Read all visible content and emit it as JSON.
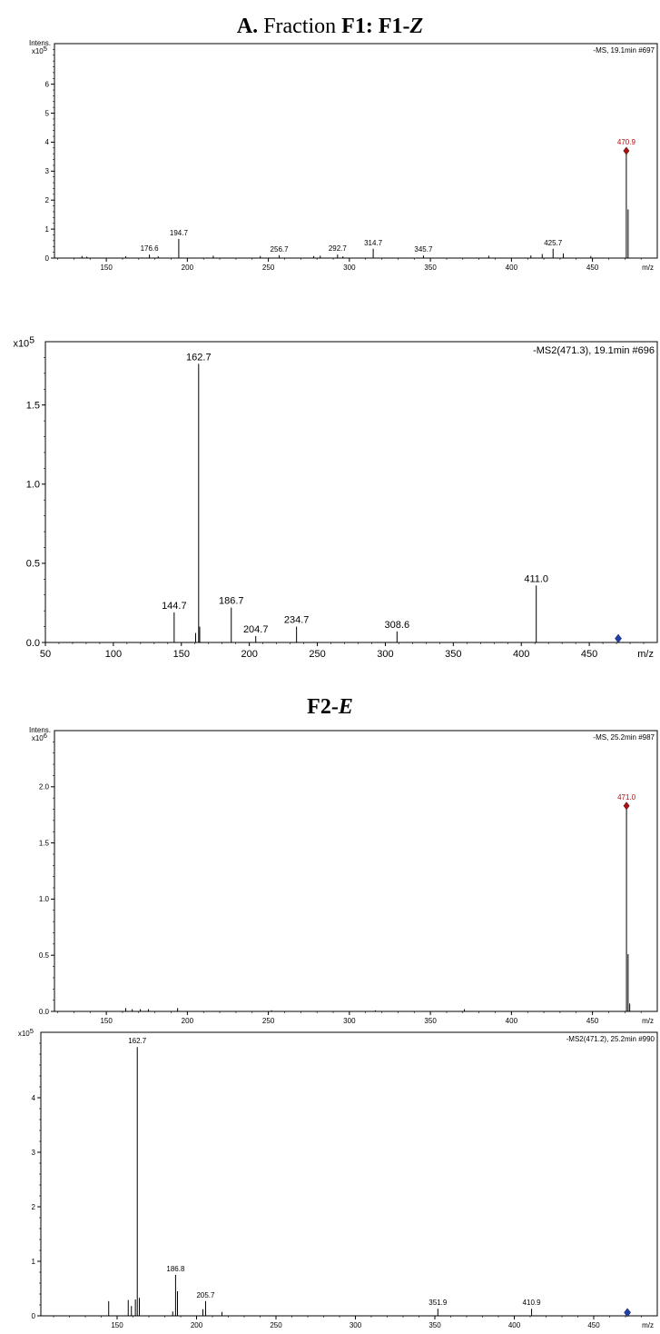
{
  "titles": {
    "a_prefix": "A.",
    "a_word": " Fraction ",
    "a_f1": "F1:",
    "a_f1z": "F1-",
    "a_z": "Z",
    "b_f2": "F2-",
    "b_e": "E"
  },
  "colors": {
    "precursor_red": "#b01010",
    "precursor_blue": "#1f3fb0",
    "peak": "#000000"
  },
  "chart_data": [
    {
      "type": "bar",
      "id": "f1-ms",
      "ylabel": "Intens.",
      "exp_label": "x10",
      "exp_value": "5",
      "info_label": "-MS, 19.1min #697",
      "xunit": "m/z",
      "xlim": [
        118,
        490
      ],
      "ylim": [
        0,
        7.4
      ],
      "x_ticks": [
        150,
        200,
        250,
        300,
        350,
        400,
        450
      ],
      "y_ticks": [
        0,
        1,
        2,
        3,
        4,
        5,
        6
      ],
      "y_tick_labels": [
        "0",
        "1",
        "2",
        "3",
        "4",
        "5",
        "6"
      ],
      "peaks": [
        {
          "x": 135,
          "y": 0.07
        },
        {
          "x": 138,
          "y": 0.05
        },
        {
          "x": 162,
          "y": 0.06
        },
        {
          "x": 176.6,
          "y": 0.12
        },
        {
          "x": 182,
          "y": 0.06
        },
        {
          "x": 194.7,
          "y": 0.66
        },
        {
          "x": 216,
          "y": 0.08
        },
        {
          "x": 245,
          "y": 0.07
        },
        {
          "x": 256.7,
          "y": 0.1
        },
        {
          "x": 278,
          "y": 0.07
        },
        {
          "x": 282,
          "y": 0.08
        },
        {
          "x": 292.7,
          "y": 0.12
        },
        {
          "x": 296,
          "y": 0.06
        },
        {
          "x": 314.7,
          "y": 0.32
        },
        {
          "x": 345.7,
          "y": 0.09
        },
        {
          "x": 386,
          "y": 0.08
        },
        {
          "x": 412,
          "y": 0.09
        },
        {
          "x": 419,
          "y": 0.14
        },
        {
          "x": 425.7,
          "y": 0.32
        },
        {
          "x": 432,
          "y": 0.16
        },
        {
          "x": 449,
          "y": 0.07
        },
        {
          "x": 470.9,
          "y": 3.7
        },
        {
          "x": 472,
          "y": 1.68
        }
      ],
      "labels": [
        {
          "text": "176.6",
          "x": 176.6,
          "y": 0.12
        },
        {
          "text": "194.7",
          "x": 194.7,
          "y": 0.66
        },
        {
          "text": "256.7",
          "x": 256.7,
          "y": 0.1
        },
        {
          "text": "292.7",
          "x": 292.7,
          "y": 0.12
        },
        {
          "text": "314.7",
          "x": 314.7,
          "y": 0.32
        },
        {
          "text": "345.7",
          "x": 345.7,
          "y": 0.09
        },
        {
          "text": "425.7",
          "x": 425.7,
          "y": 0.32
        },
        {
          "text": "470.9",
          "x": 470.9,
          "y": 3.7,
          "color": "red"
        }
      ],
      "precursor": {
        "x": 470.9,
        "y": 3.7,
        "color": "red"
      }
    },
    {
      "type": "bar",
      "id": "f1-ms2",
      "ylabel": "",
      "exp_label": "x10",
      "exp_value": "5",
      "info_label": "-MS2(471.3), 19.1min #696",
      "xunit": "m/z",
      "xlim": [
        50,
        500
      ],
      "ylim": [
        0,
        1.9
      ],
      "x_ticks": [
        50,
        100,
        150,
        200,
        250,
        300,
        350,
        400,
        450
      ],
      "y_ticks": [
        0,
        0.5,
        1.0,
        1.5
      ],
      "y_tick_labels": [
        "0.0",
        "0.5",
        "1.0",
        "1.5"
      ],
      "peaks": [
        {
          "x": 144.7,
          "y": 0.19
        },
        {
          "x": 160.5,
          "y": 0.06
        },
        {
          "x": 162.7,
          "y": 1.76
        },
        {
          "x": 163.5,
          "y": 0.1
        },
        {
          "x": 186.7,
          "y": 0.22
        },
        {
          "x": 204.7,
          "y": 0.04
        },
        {
          "x": 234.7,
          "y": 0.1
        },
        {
          "x": 308.6,
          "y": 0.07
        },
        {
          "x": 411.0,
          "y": 0.36
        }
      ],
      "labels": [
        {
          "text": "144.7",
          "x": 144.7,
          "y": 0.19
        },
        {
          "text": "162.7",
          "x": 162.7,
          "y": 1.76
        },
        {
          "text": "186.7",
          "x": 186.7,
          "y": 0.22
        },
        {
          "text": "204.7",
          "x": 204.7,
          "y": 0.04
        },
        {
          "text": "234.7",
          "x": 234.7,
          "y": 0.1
        },
        {
          "text": "308.6",
          "x": 308.6,
          "y": 0.07
        },
        {
          "text": "411.0",
          "x": 411.0,
          "y": 0.36
        }
      ],
      "precursor": {
        "x": 471.3,
        "y": 0.025,
        "color": "blue"
      }
    },
    {
      "type": "bar",
      "id": "f2-ms",
      "ylabel": "Intens.",
      "exp_label": "x10",
      "exp_value": "6",
      "info_label": "-MS, 25.2min #987",
      "xunit": "m/z",
      "xlim": [
        118,
        490
      ],
      "ylim": [
        0,
        2.5
      ],
      "x_ticks": [
        150,
        200,
        250,
        300,
        350,
        400,
        450
      ],
      "y_ticks": [
        0,
        0.5,
        1.0,
        1.5,
        2.0
      ],
      "y_tick_labels": [
        "0.0",
        "0.5",
        "1.0",
        "1.5",
        "2.0"
      ],
      "peaks": [
        {
          "x": 162,
          "y": 0.03
        },
        {
          "x": 166,
          "y": 0.02
        },
        {
          "x": 171,
          "y": 0.02
        },
        {
          "x": 176,
          "y": 0.02
        },
        {
          "x": 194,
          "y": 0.03
        },
        {
          "x": 252,
          "y": 0.01
        },
        {
          "x": 316,
          "y": 0.01
        },
        {
          "x": 371,
          "y": 0.02
        },
        {
          "x": 471.0,
          "y": 1.83
        },
        {
          "x": 472,
          "y": 0.51
        },
        {
          "x": 473,
          "y": 0.07
        }
      ],
      "labels": [
        {
          "text": "471.0",
          "x": 471.0,
          "y": 1.83,
          "color": "red"
        }
      ],
      "precursor": {
        "x": 471.0,
        "y": 1.83,
        "color": "red"
      }
    },
    {
      "type": "bar",
      "id": "f2-ms2",
      "ylabel": "",
      "exp_label": "x10",
      "exp_value": "5",
      "info_label": "-MS2(471.2), 25.2min #990",
      "xunit": "m/z",
      "xlim": [
        102,
        490
      ],
      "ylim": [
        0,
        5.2
      ],
      "x_ticks": [
        150,
        200,
        250,
        300,
        350,
        400,
        450
      ],
      "y_ticks": [
        0,
        1,
        2,
        3,
        4
      ],
      "y_tick_labels": [
        "0",
        "1",
        "2",
        "3",
        "4"
      ],
      "peaks": [
        {
          "x": 144.7,
          "y": 0.27
        },
        {
          "x": 157,
          "y": 0.29
        },
        {
          "x": 159,
          "y": 0.18
        },
        {
          "x": 161.5,
          "y": 0.3
        },
        {
          "x": 162.7,
          "y": 4.93
        },
        {
          "x": 164,
          "y": 0.33
        },
        {
          "x": 185,
          "y": 0.08
        },
        {
          "x": 186.8,
          "y": 0.75
        },
        {
          "x": 188,
          "y": 0.45
        },
        {
          "x": 204,
          "y": 0.12
        },
        {
          "x": 205.7,
          "y": 0.27
        },
        {
          "x": 216,
          "y": 0.07
        },
        {
          "x": 351.9,
          "y": 0.13
        },
        {
          "x": 410.9,
          "y": 0.13
        }
      ],
      "labels": [
        {
          "text": "162.7",
          "x": 162.7,
          "y": 4.93
        },
        {
          "text": "186.8",
          "x": 186.8,
          "y": 0.75
        },
        {
          "text": "205.7",
          "x": 205.7,
          "y": 0.27
        },
        {
          "text": "351.9",
          "x": 351.9,
          "y": 0.13
        },
        {
          "text": "410.9",
          "x": 410.9,
          "y": 0.13
        }
      ],
      "precursor": {
        "x": 471.2,
        "y": 0.06,
        "color": "blue"
      }
    }
  ]
}
